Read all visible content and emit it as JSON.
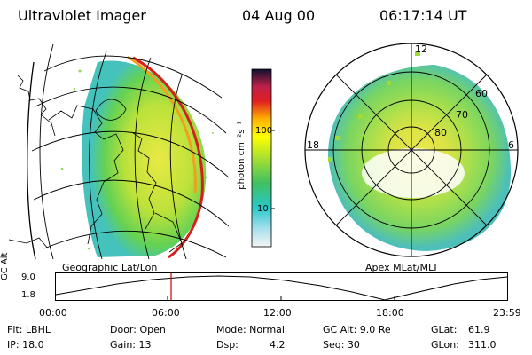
{
  "header": {
    "instrument": "Ultraviolet Imager",
    "date": "04 Aug 00",
    "time": "06:17:14 UT"
  },
  "left_panel": {
    "caption": "Geographic Lat/Lon"
  },
  "right_panel": {
    "caption": "Apex MLat/MLT",
    "mlt_labels": {
      "top": "12",
      "left": "18",
      "right": "6"
    },
    "mlat_labels": [
      "60",
      "70",
      "80"
    ]
  },
  "colorbar": {
    "unit_label": "photon cm⁻²s⁻¹",
    "tick_labels": [
      "100",
      "10"
    ],
    "scale": "log"
  },
  "altitude_plot": {
    "ylabel": "GC Alt",
    "y_ticks": [
      "9.0",
      "1.8"
    ],
    "x_ticks": [
      "00:00",
      "06:00",
      "12:00",
      "18:00",
      "23:59"
    ],
    "current_time_marker": "06:17",
    "marker_color": "#cc0000"
  },
  "info": {
    "flt": "Flt: LBHL",
    "ip": "IP: 18.0",
    "door": "Door: Open",
    "gain": "Gain: 13",
    "mode": "Mode: Normal",
    "dsp_label": "Dsp:",
    "dsp_value": "4.2",
    "gc_alt": "GC Alt: 9.0 Re",
    "seq": "Seq: 30",
    "glat_label": "GLat:",
    "glat_value": "61.9",
    "glon_label": "GLon:",
    "glon_value": "311.0"
  }
}
